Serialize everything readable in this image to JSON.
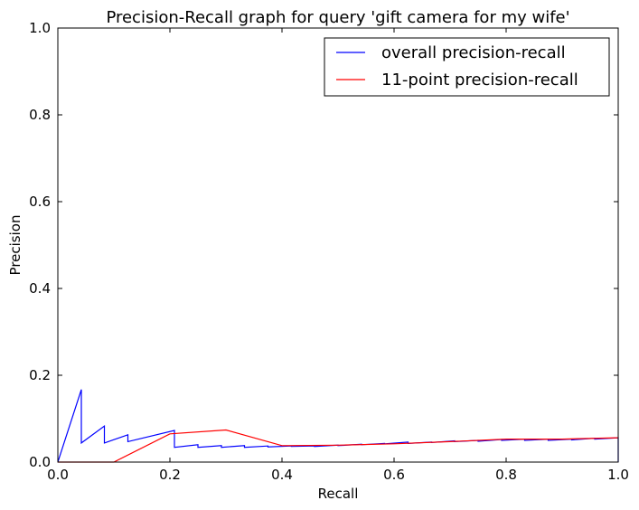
{
  "chart_data": {
    "type": "line",
    "title": "Precision-Recall graph for query 'gift camera for my wife'",
    "xlabel": "Recall",
    "ylabel": "Precision",
    "xlim": [
      0.0,
      1.0
    ],
    "ylim": [
      0.0,
      1.0
    ],
    "xticks": [
      "0.0",
      "0.2",
      "0.4",
      "0.6",
      "0.8",
      "1.0"
    ],
    "yticks": [
      "0.0",
      "0.2",
      "0.4",
      "0.6",
      "0.8",
      "1.0"
    ],
    "grid": false,
    "legend_position": "top-right",
    "series": [
      {
        "name": "overall precision-recall",
        "color": "#0000ff",
        "x": [
          0.0,
          0.042,
          0.042,
          0.083,
          0.083,
          0.125,
          0.125,
          0.208,
          0.208,
          0.25,
          0.25,
          0.292,
          0.292,
          0.333,
          0.333,
          0.375,
          0.375,
          0.417,
          0.417,
          0.458,
          0.458,
          0.5,
          0.5,
          0.542,
          0.542,
          0.583,
          0.583,
          0.625,
          0.625,
          0.667,
          0.667,
          0.708,
          0.708,
          0.75,
          0.75,
          0.792,
          0.792,
          0.833,
          0.833,
          0.875,
          0.875,
          0.917,
          0.917,
          0.958,
          0.958,
          1.0,
          1.0
        ],
        "y": [
          0.0,
          0.167,
          0.044,
          0.083,
          0.044,
          0.063,
          0.047,
          0.073,
          0.034,
          0.04,
          0.034,
          0.038,
          0.034,
          0.038,
          0.034,
          0.037,
          0.035,
          0.037,
          0.036,
          0.037,
          0.036,
          0.039,
          0.038,
          0.041,
          0.04,
          0.043,
          0.042,
          0.046,
          0.043,
          0.046,
          0.045,
          0.049,
          0.047,
          0.05,
          0.048,
          0.052,
          0.05,
          0.053,
          0.05,
          0.053,
          0.05,
          0.053,
          0.051,
          0.055,
          0.053,
          0.056,
          0.0
        ]
      },
      {
        "name": "11-point precision-recall",
        "color": "#ff0000",
        "x": [
          0.0,
          0.1,
          0.2,
          0.3,
          0.4,
          0.5,
          0.6,
          0.7,
          0.8,
          0.9,
          1.0
        ],
        "y": [
          0.0,
          0.0,
          0.065,
          0.074,
          0.038,
          0.039,
          0.042,
          0.047,
          0.053,
          0.053,
          0.056
        ]
      }
    ]
  }
}
